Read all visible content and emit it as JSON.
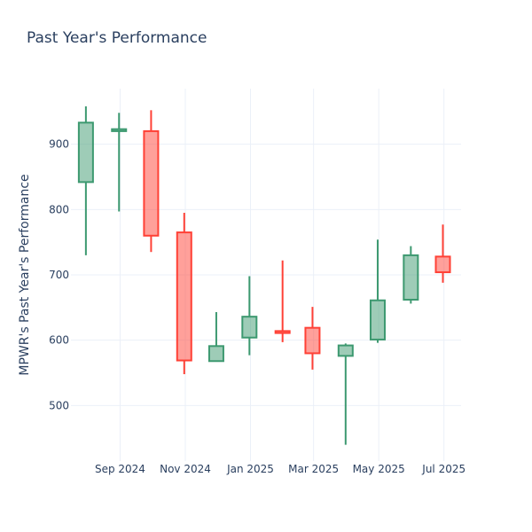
{
  "chart_data": {
    "type": "candlestick",
    "title": "Past Year's Performance",
    "xlabel": "",
    "ylabel": "MPWR's Past Year's Performance",
    "ylim": [
      415,
      985
    ],
    "y_ticks": [
      500,
      600,
      700,
      800,
      900
    ],
    "x_ticks": [
      "Sep 2024",
      "Nov 2024",
      "Jan 2025",
      "Mar 2025",
      "May 2025",
      "Jul 2025"
    ],
    "x_tick_dates": [
      "2024-09-01",
      "2024-11-01",
      "2025-01-01",
      "2025-03-01",
      "2025-05-01",
      "2025-07-01"
    ],
    "xlim": [
      "2024-07-17",
      "2025-07-17"
    ],
    "increasing_color": "#3d9970",
    "decreasing_color": "#ff4136",
    "grid": true,
    "candles": [
      {
        "date": "2024-07-31",
        "open": 842,
        "high": 958,
        "low": 730,
        "close": 933
      },
      {
        "date": "2024-08-31",
        "open": 920,
        "high": 948,
        "low": 797,
        "close": 923
      },
      {
        "date": "2024-09-30",
        "open": 920,
        "high": 952,
        "low": 735,
        "close": 760
      },
      {
        "date": "2024-10-31",
        "open": 765,
        "high": 795,
        "low": 548,
        "close": 569
      },
      {
        "date": "2024-11-30",
        "open": 568,
        "high": 643,
        "low": 568,
        "close": 591
      },
      {
        "date": "2024-12-31",
        "open": 604,
        "high": 698,
        "low": 577,
        "close": 636
      },
      {
        "date": "2025-01-31",
        "open": 614,
        "high": 722,
        "low": 597,
        "close": 611
      },
      {
        "date": "2025-02-28",
        "open": 619,
        "high": 651,
        "low": 555,
        "close": 580
      },
      {
        "date": "2025-03-31",
        "open": 576,
        "high": 595,
        "low": 440,
        "close": 592
      },
      {
        "date": "2025-04-30",
        "open": 601,
        "high": 754,
        "low": 596,
        "close": 661
      },
      {
        "date": "2025-05-31",
        "open": 662,
        "high": 744,
        "low": 656,
        "close": 730
      },
      {
        "date": "2025-06-30",
        "open": 728,
        "high": 777,
        "low": 688,
        "close": 704
      }
    ]
  }
}
